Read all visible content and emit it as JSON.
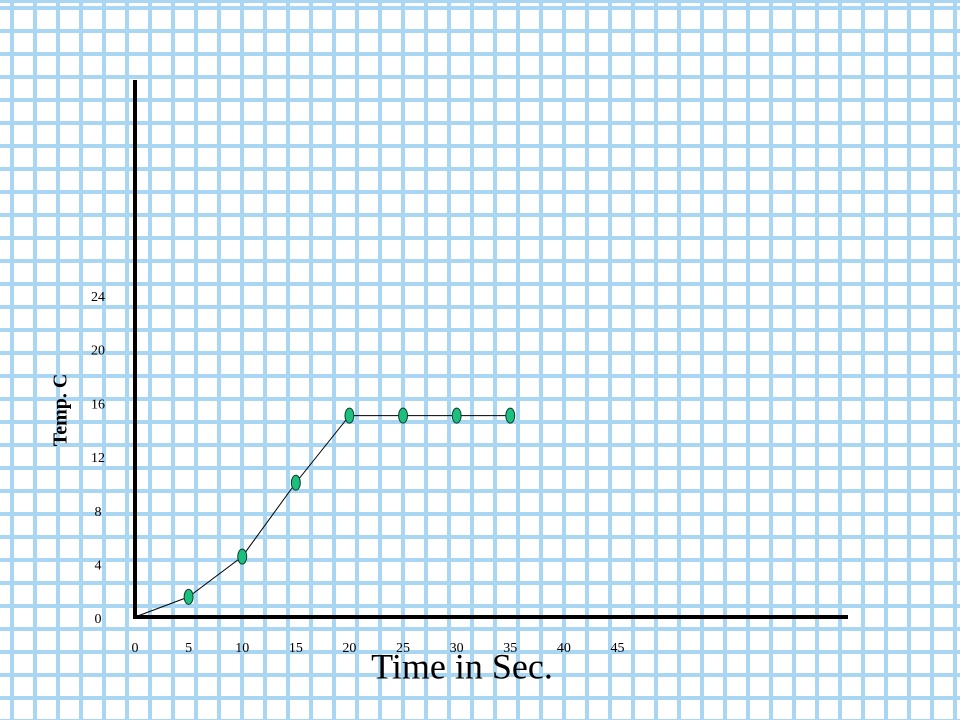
{
  "chart_data": {
    "type": "line",
    "x_label": "Time in Sec.",
    "y_label": "Temp. C",
    "x": [
      5,
      10,
      15,
      20,
      25,
      30,
      35
    ],
    "series": [
      {
        "color": "#000000",
        "marker_color": "#1dbf7e",
        "values": [
          1.5,
          4.5,
          10,
          15,
          15,
          15,
          15
        ]
      }
    ],
    "xlim": [
      0,
      66.5
    ],
    "ylim": [
      0,
      40
    ],
    "xticks": [
      0,
      5,
      10,
      15,
      20,
      25,
      30,
      35,
      40,
      45
    ],
    "yticks": [
      0,
      4,
      8,
      12,
      16,
      20,
      24
    ]
  }
}
